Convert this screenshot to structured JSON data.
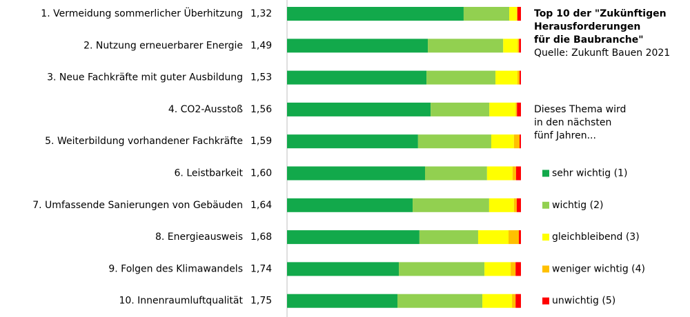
{
  "chart_data": {
    "type": "stacked-bar-horizontal",
    "title": [
      "Top 10 der \"Zukünftigen",
      "Herausforderungen",
      "für die Baubranche\""
    ],
    "source": "Quelle: Zukunft Bauen 2021",
    "subtitle": [
      "Dieses Thema wird",
      "in den nächsten",
      "fünf Jahren..."
    ],
    "categories": [
      "1. Vermeidung sommerlicher Überhitzung",
      "2. Nutzung erneuerbarer Energie",
      "3. Neue Fachkräfte mit guter Ausbildung",
      "4. CO2-Ausstoß",
      "5. Weiterbildung vorhandener Fachkräfte",
      "6. Leistbarkeit",
      "7. Umfassende Sanierungen von Gebäuden",
      "8. Energieausweis",
      "9. Folgen des Klimawandels",
      "10. Innenraumluftqualität"
    ],
    "scores": [
      1.32,
      1.49,
      1.53,
      1.56,
      1.59,
      1.6,
      1.64,
      1.68,
      1.74,
      1.75
    ],
    "score_labels": [
      "1,32",
      "1,49",
      "1,53",
      "1,56",
      "1,59",
      "1,60",
      "1,64",
      "1,68",
      "1,74",
      "1,75"
    ],
    "xlim": [
      0,
      100
    ],
    "series": [
      {
        "name": "sehr wichtig (1)",
        "color": "#12a94b",
        "values": [
          75.5,
          60.2,
          59.6,
          61.4,
          56.0,
          59.0,
          53.7,
          56.6,
          47.8,
          47.2
        ]
      },
      {
        "name": "wichtig (2)",
        "color": "#92d050",
        "values": [
          19.5,
          32.2,
          29.5,
          25.1,
          31.3,
          26.5,
          32.7,
          25.1,
          36.6,
          36.3
        ]
      },
      {
        "name": "gleichbleibend (3)",
        "color": "#ffff00",
        "values": [
          3.2,
          6.2,
          9.4,
          11.2,
          9.7,
          10.9,
          10.6,
          13.0,
          11.2,
          12.7
        ]
      },
      {
        "name": "weniger wichtig (4)",
        "color": "#ffc000",
        "values": [
          0.3,
          0.6,
          0.9,
          0.6,
          2.4,
          1.5,
          1.2,
          4.4,
          2.1,
          1.5
        ]
      },
      {
        "name": "unwichtig (5)",
        "color": "#ff0000",
        "values": [
          1.5,
          0.8,
          0.6,
          1.7,
          0.6,
          2.1,
          1.8,
          0.9,
          2.3,
          2.3
        ]
      }
    ]
  }
}
